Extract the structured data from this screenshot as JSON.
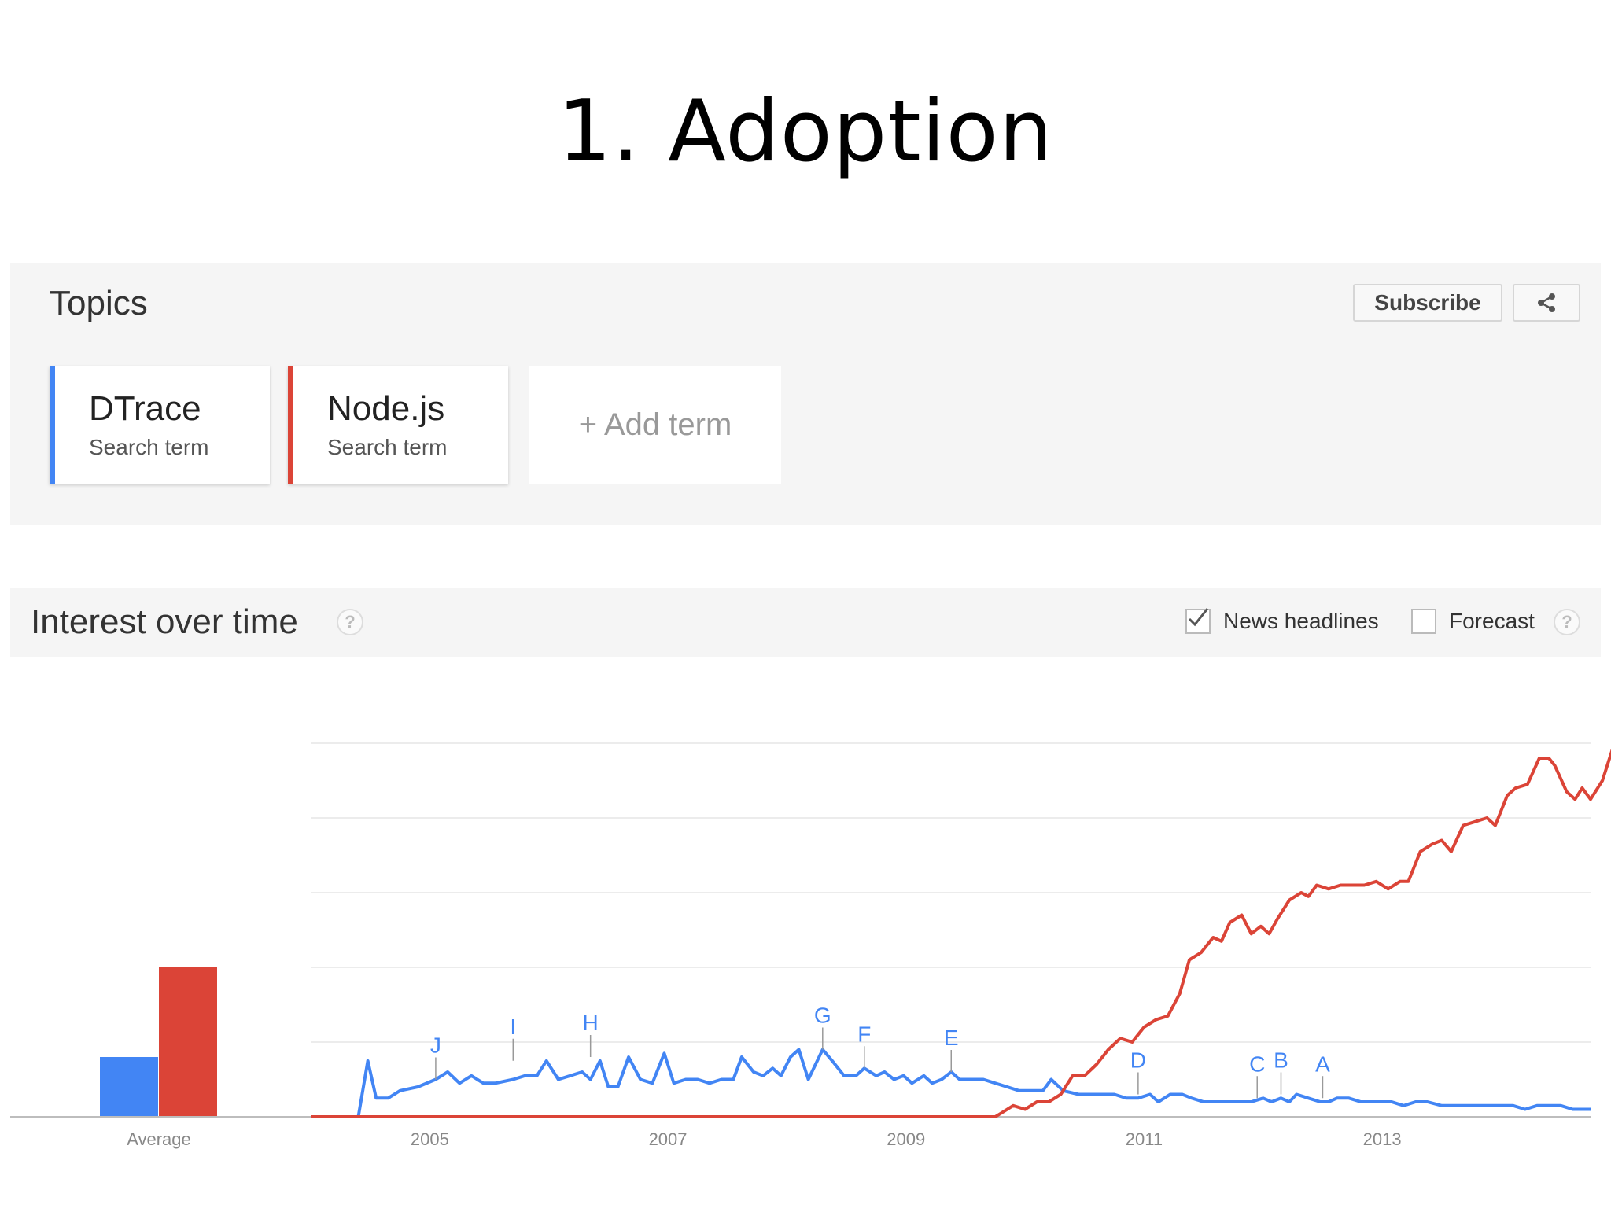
{
  "slide": {
    "title": "1. Adoption"
  },
  "topics": {
    "title": "Topics",
    "subscribe_label": "Subscribe",
    "share_icon": "share-icon",
    "terms": [
      {
        "name": "DTrace",
        "sub": "Search term",
        "color": "#4285f4"
      },
      {
        "name": "Node.js",
        "sub": "Search term",
        "color": "#db4437"
      }
    ],
    "add_term_label": "+ Add term"
  },
  "interest": {
    "title": "Interest over time",
    "help_icon": "help-icon",
    "news_headlines_label": "News headlines",
    "news_headlines_checked": true,
    "forecast_label": "Forecast",
    "forecast_checked": false
  },
  "chart_data": {
    "type": "line",
    "x_ticks": [
      "2005",
      "2007",
      "2009",
      "2011",
      "2013"
    ],
    "x_range": [
      2004.0,
      2014.75
    ],
    "ylim": [
      0,
      100
    ],
    "grid": true,
    "average_label": "Average",
    "average": [
      {
        "name": "DTrace",
        "value": 16
      },
      {
        "name": "Node.js",
        "value": 40
      }
    ],
    "series": [
      {
        "name": "DTrace",
        "color": "#4285f4",
        "points": [
          [
            2004.0,
            0
          ],
          [
            2004.4,
            0
          ],
          [
            2004.48,
            15
          ],
          [
            2004.55,
            5
          ],
          [
            2004.65,
            5
          ],
          [
            2004.75,
            7
          ],
          [
            2004.9,
            8
          ],
          [
            2005.05,
            10
          ],
          [
            2005.15,
            12
          ],
          [
            2005.25,
            9
          ],
          [
            2005.35,
            11
          ],
          [
            2005.45,
            9
          ],
          [
            2005.55,
            9
          ],
          [
            2005.7,
            10
          ],
          [
            2005.8,
            11
          ],
          [
            2005.9,
            11
          ],
          [
            2005.98,
            15
          ],
          [
            2006.08,
            10
          ],
          [
            2006.18,
            11
          ],
          [
            2006.28,
            12
          ],
          [
            2006.35,
            10
          ],
          [
            2006.43,
            15
          ],
          [
            2006.5,
            8
          ],
          [
            2006.58,
            8
          ],
          [
            2006.67,
            16
          ],
          [
            2006.77,
            10
          ],
          [
            2006.87,
            9
          ],
          [
            2006.97,
            17
          ],
          [
            2007.05,
            9
          ],
          [
            2007.15,
            10
          ],
          [
            2007.25,
            10
          ],
          [
            2007.35,
            9
          ],
          [
            2007.45,
            10
          ],
          [
            2007.55,
            10
          ],
          [
            2007.62,
            16
          ],
          [
            2007.72,
            12
          ],
          [
            2007.8,
            11
          ],
          [
            2007.88,
            13
          ],
          [
            2007.95,
            11
          ],
          [
            2008.03,
            16
          ],
          [
            2008.1,
            18
          ],
          [
            2008.18,
            10
          ],
          [
            2008.3,
            18
          ],
          [
            2008.38,
            15
          ],
          [
            2008.48,
            11
          ],
          [
            2008.58,
            11
          ],
          [
            2008.65,
            13
          ],
          [
            2008.75,
            11
          ],
          [
            2008.82,
            12
          ],
          [
            2008.9,
            10
          ],
          [
            2008.98,
            11
          ],
          [
            2009.05,
            9
          ],
          [
            2009.15,
            11
          ],
          [
            2009.22,
            9
          ],
          [
            2009.3,
            10
          ],
          [
            2009.38,
            12
          ],
          [
            2009.45,
            10
          ],
          [
            2009.55,
            10
          ],
          [
            2009.65,
            10
          ],
          [
            2009.75,
            9
          ],
          [
            2009.85,
            8
          ],
          [
            2009.95,
            7
          ],
          [
            2010.05,
            7
          ],
          [
            2010.15,
            7
          ],
          [
            2010.22,
            10
          ],
          [
            2010.32,
            7
          ],
          [
            2010.45,
            6
          ],
          [
            2010.6,
            6
          ],
          [
            2010.75,
            6
          ],
          [
            2010.85,
            5
          ],
          [
            2010.95,
            5
          ],
          [
            2011.05,
            6
          ],
          [
            2011.12,
            4
          ],
          [
            2011.22,
            6
          ],
          [
            2011.32,
            6
          ],
          [
            2011.4,
            5
          ],
          [
            2011.5,
            4
          ],
          [
            2011.6,
            4
          ],
          [
            2011.7,
            4
          ],
          [
            2011.8,
            4
          ],
          [
            2011.9,
            4
          ],
          [
            2012.0,
            5
          ],
          [
            2012.07,
            4
          ],
          [
            2012.15,
            5
          ],
          [
            2012.22,
            4
          ],
          [
            2012.28,
            6
          ],
          [
            2012.38,
            5
          ],
          [
            2012.48,
            4
          ],
          [
            2012.55,
            4
          ],
          [
            2012.62,
            5
          ],
          [
            2012.72,
            5
          ],
          [
            2012.82,
            4
          ],
          [
            2012.95,
            4
          ],
          [
            2013.08,
            4
          ],
          [
            2013.18,
            3
          ],
          [
            2013.28,
            4
          ],
          [
            2013.38,
            4
          ],
          [
            2013.5,
            3
          ],
          [
            2013.7,
            3
          ],
          [
            2013.9,
            3
          ],
          [
            2014.1,
            3
          ],
          [
            2014.2,
            2
          ],
          [
            2014.3,
            3
          ],
          [
            2014.5,
            3
          ],
          [
            2014.6,
            2
          ],
          [
            2014.7,
            2
          ],
          [
            2014.75,
            2
          ]
        ]
      },
      {
        "name": "Node.js",
        "color": "#db4437",
        "points": [
          [
            2004.0,
            0
          ],
          [
            2009.75,
            0
          ],
          [
            2009.9,
            3
          ],
          [
            2010.0,
            2
          ],
          [
            2010.1,
            4
          ],
          [
            2010.2,
            4
          ],
          [
            2010.3,
            6
          ],
          [
            2010.4,
            11
          ],
          [
            2010.5,
            11
          ],
          [
            2010.6,
            14
          ],
          [
            2010.7,
            18
          ],
          [
            2010.8,
            21
          ],
          [
            2010.9,
            20
          ],
          [
            2011.0,
            24
          ],
          [
            2011.1,
            26
          ],
          [
            2011.2,
            27
          ],
          [
            2011.3,
            33
          ],
          [
            2011.38,
            42
          ],
          [
            2011.48,
            44
          ],
          [
            2011.58,
            48
          ],
          [
            2011.65,
            47
          ],
          [
            2011.72,
            52
          ],
          [
            2011.82,
            54
          ],
          [
            2011.9,
            49
          ],
          [
            2011.98,
            51
          ],
          [
            2012.05,
            49
          ],
          [
            2012.12,
            53
          ],
          [
            2012.22,
            58
          ],
          [
            2012.32,
            60
          ],
          [
            2012.38,
            59
          ],
          [
            2012.45,
            62
          ],
          [
            2012.55,
            61
          ],
          [
            2012.65,
            62
          ],
          [
            2012.75,
            62
          ],
          [
            2012.85,
            62
          ],
          [
            2012.95,
            63
          ],
          [
            2013.05,
            61
          ],
          [
            2013.15,
            63
          ],
          [
            2013.22,
            63
          ],
          [
            2013.32,
            71
          ],
          [
            2013.42,
            73
          ],
          [
            2013.5,
            74
          ],
          [
            2013.58,
            71
          ],
          [
            2013.68,
            78
          ],
          [
            2013.78,
            79
          ],
          [
            2013.88,
            80
          ],
          [
            2013.95,
            78
          ],
          [
            2014.05,
            86
          ],
          [
            2014.12,
            88
          ],
          [
            2014.22,
            89
          ],
          [
            2014.32,
            96
          ],
          [
            2014.4,
            96
          ],
          [
            2014.45,
            94
          ],
          [
            2014.55,
            87
          ],
          [
            2014.62,
            85
          ],
          [
            2014.68,
            88
          ],
          [
            2014.75,
            85
          ],
          [
            2014.85,
            90
          ],
          [
            2014.95,
            100
          ]
        ]
      }
    ],
    "annotations": [
      {
        "label": "J",
        "x": 2005.05,
        "y": 10
      },
      {
        "label": "I",
        "x": 2005.7,
        "y": 15
      },
      {
        "label": "H",
        "x": 2006.35,
        "y": 16
      },
      {
        "label": "G",
        "x": 2008.3,
        "y": 18
      },
      {
        "label": "F",
        "x": 2008.65,
        "y": 13
      },
      {
        "label": "E",
        "x": 2009.38,
        "y": 12
      },
      {
        "label": "D",
        "x": 2010.95,
        "y": 6
      },
      {
        "label": "C",
        "x": 2011.95,
        "y": 5
      },
      {
        "label": "B",
        "x": 2012.15,
        "y": 6
      },
      {
        "label": "A",
        "x": 2012.5,
        "y": 5
      }
    ]
  }
}
